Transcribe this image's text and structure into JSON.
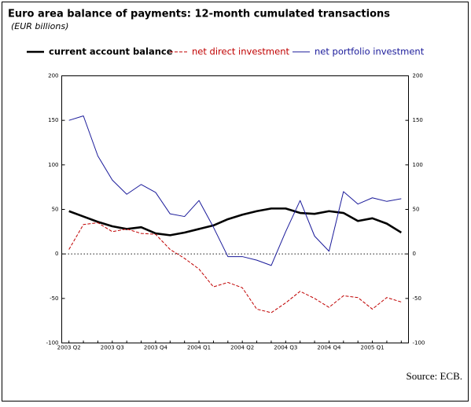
{
  "chart_data": {
    "type": "line",
    "title": "Euro area balance of payments: 12-month cumulated transactions",
    "subtitle": "(EUR billions)",
    "source": "Source: ECB.",
    "categories": [
      "2003 Q2",
      null,
      null,
      "2003 Q3",
      null,
      null,
      "2003 Q4",
      null,
      null,
      "2004 Q1",
      null,
      null,
      "2004 Q2",
      null,
      null,
      "2004 Q3",
      null,
      null,
      "2004 Q4",
      null,
      null,
      "2005 Q1",
      null,
      null
    ],
    "series": [
      {
        "name": "current account balance",
        "color": "#000000",
        "style": "bold",
        "values": [
          48,
          42,
          36,
          31,
          28,
          30,
          23,
          21,
          24,
          28,
          32,
          39,
          44,
          48,
          51,
          51,
          46,
          45,
          48,
          46,
          37,
          40,
          34,
          24
        ]
      },
      {
        "name": "net direct investment",
        "color": "#c00000",
        "style": "dashed",
        "values": [
          5,
          33,
          35,
          25,
          28,
          23,
          22,
          5,
          -5,
          -17,
          -37,
          -32,
          -38,
          -62,
          -66,
          -55,
          -42,
          -50,
          -60,
          -47,
          -49,
          -62,
          -49,
          -54
        ]
      },
      {
        "name": "net portfolio investment",
        "color": "#1a1a9a",
        "style": "solid",
        "values": [
          150,
          155,
          110,
          83,
          67,
          78,
          69,
          45,
          42,
          60,
          30,
          -3,
          -3,
          -7,
          -13,
          25,
          60,
          20,
          3,
          70,
          56,
          63,
          59,
          62
        ]
      }
    ],
    "ylim": [
      -100,
      200
    ],
    "yticks": [
      -100,
      -50,
      0,
      50,
      100,
      150,
      200
    ],
    "y2lim": [
      -100,
      200
    ],
    "y2ticks": [
      -100,
      -50,
      0,
      50,
      100,
      150,
      200
    ],
    "zero_line": true
  }
}
